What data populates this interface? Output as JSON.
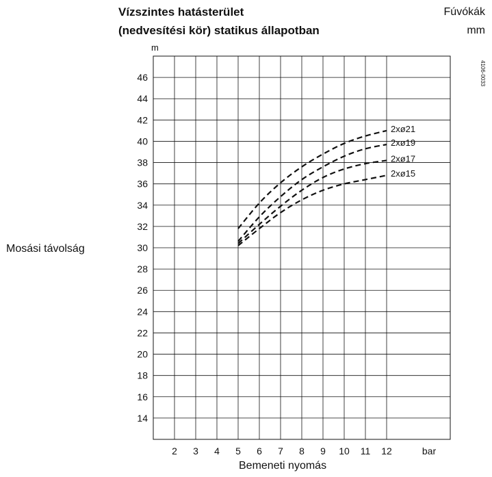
{
  "chart_data": {
    "type": "line",
    "title_line1": "Vízszintes hatásterület",
    "title_line2": "(nedvesítési kör) statikus állapotban",
    "legend_title_line1": "Fúvókák",
    "legend_title_line2": "mm",
    "ylabel": "Mosási távolság",
    "yunit": "m",
    "xlabel": "Bemeneti nyomás",
    "xunit": "bar",
    "figure_code": "4106-0033",
    "x_ticks": [
      "2",
      "3",
      "4",
      "5",
      "6",
      "7",
      "8",
      "9",
      "10",
      "11",
      "12"
    ],
    "y_ticks": [
      "14",
      "16",
      "18",
      "20",
      "22",
      "24",
      "26",
      "28",
      "30",
      "32",
      "34",
      "36",
      "38",
      "40",
      "42",
      "44",
      "46"
    ],
    "xlim": [
      1,
      15
    ],
    "ylim": [
      12,
      48
    ],
    "grid": true,
    "series": [
      {
        "name": "2xø21",
        "x": [
          5,
          6,
          7,
          8,
          9,
          10,
          11,
          12
        ],
        "y": [
          31.8,
          34.2,
          36.1,
          37.6,
          38.8,
          39.8,
          40.5,
          41.0
        ]
      },
      {
        "name": "2xø19",
        "x": [
          5,
          6,
          7,
          8,
          9,
          10,
          11,
          12
        ],
        "y": [
          30.6,
          32.9,
          34.8,
          36.4,
          37.6,
          38.6,
          39.3,
          39.7
        ]
      },
      {
        "name": "2xø17",
        "x": [
          5,
          6,
          7,
          8,
          9,
          10,
          11,
          12
        ],
        "y": [
          30.4,
          32.2,
          33.9,
          35.4,
          36.6,
          37.4,
          37.9,
          38.2
        ]
      },
      {
        "name": "2xø15",
        "x": [
          5,
          6,
          7,
          8,
          9,
          10,
          11,
          12
        ],
        "y": [
          30.2,
          31.8,
          33.3,
          34.5,
          35.4,
          36.0,
          36.4,
          36.8
        ]
      }
    ]
  }
}
